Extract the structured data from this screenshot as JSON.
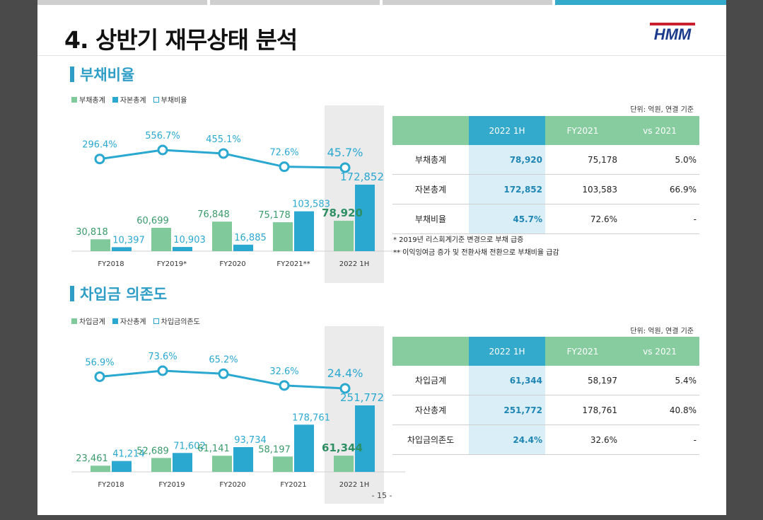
{
  "page": {
    "title": "4. 상반기 재무상태 분석",
    "logo_text": "HMM",
    "page_number": "- 15 -",
    "top_tabs": 4,
    "active_tab": 4
  },
  "colors": {
    "green": "#7fc99a",
    "blue": "#2aa8d0",
    "line": "#2aa8d0",
    "header_green": "#87cc9f",
    "header_blue": "#33a9cc",
    "highlight": "#daeef7"
  },
  "debt": {
    "section_title": "부채비율",
    "legend": [
      "부채총계",
      "자본총계",
      "부채비율"
    ],
    "unit": "단위: 억원, 연결 기준",
    "table": {
      "headers": [
        "",
        "2022 1H",
        "FY2021",
        "vs 2021"
      ],
      "rows": [
        [
          "부채총계",
          "78,920",
          "75,178",
          "5.0%"
        ],
        [
          "자본총계",
          "172,852",
          "103,583",
          "66.9%"
        ],
        [
          "부채비율",
          "45.7%",
          "72.6%",
          "-"
        ]
      ]
    },
    "notes": [
      "* 2019년 리스회계기준 변경으로 부채 급증",
      "** 이익잉여금 증가 및 전환사채 전환으로 부채비율 급감"
    ]
  },
  "borrow": {
    "section_title": "차입금 의존도",
    "legend": [
      "차입금계",
      "자산총계",
      "차입금의존도"
    ],
    "unit": "단위: 억원, 연결 기준",
    "table": {
      "headers": [
        "",
        "2022 1H",
        "FY2021",
        "vs 2021"
      ],
      "rows": [
        [
          "차입금계",
          "61,344",
          "58,197",
          "5.4%"
        ],
        [
          "자산총계",
          "251,772",
          "178,761",
          "40.8%"
        ],
        [
          "차입금의존도",
          "24.4%",
          "32.6%",
          "-"
        ]
      ]
    }
  },
  "chart_data": [
    {
      "type": "bar",
      "categories": [
        "FY2018",
        "FY2019*",
        "FY2020",
        "FY2021**",
        "2022 1H"
      ],
      "series": [
        {
          "name": "부채총계",
          "values": [
            30818,
            60699,
            76848,
            75178,
            78920
          ],
          "labels": [
            "30,818",
            "60,699",
            "76,848",
            "75,178",
            "78,920"
          ]
        },
        {
          "name": "자본총계",
          "values": [
            10397,
            10903,
            16885,
            103583,
            172852
          ],
          "labels": [
            "10,397",
            "10,903",
            "16,885",
            "103,583",
            "172,852"
          ]
        },
        {
          "name": "부채비율",
          "chart": "line",
          "values": [
            296.4,
            556.7,
            455.1,
            72.6,
            45.7
          ],
          "labels": [
            "296.4%",
            "556.7%",
            "455.1%",
            "72.6%",
            "45.7%"
          ]
        }
      ],
      "highlight_category": "2022 1H"
    },
    {
      "type": "bar",
      "categories": [
        "FY2018",
        "FY2019",
        "FY2020",
        "FY2021",
        "2022 1H"
      ],
      "series": [
        {
          "name": "차입금계",
          "values": [
            23461,
            52689,
            61141,
            58197,
            61344
          ],
          "labels": [
            "23,461",
            "52,689",
            "61,141",
            "58,197",
            "61,344"
          ]
        },
        {
          "name": "자산총계",
          "values": [
            41214,
            71602,
            93734,
            178761,
            251772
          ],
          "labels": [
            "41,214",
            "71,602",
            "93,734",
            "178,761",
            "251,772"
          ]
        },
        {
          "name": "차입금의존도",
          "chart": "line",
          "values": [
            56.9,
            73.6,
            65.2,
            32.6,
            24.4
          ],
          "labels": [
            "56.9%",
            "73.6%",
            "65.2%",
            "32.6%",
            "24.4%"
          ]
        }
      ],
      "highlight_category": "2022 1H"
    }
  ]
}
